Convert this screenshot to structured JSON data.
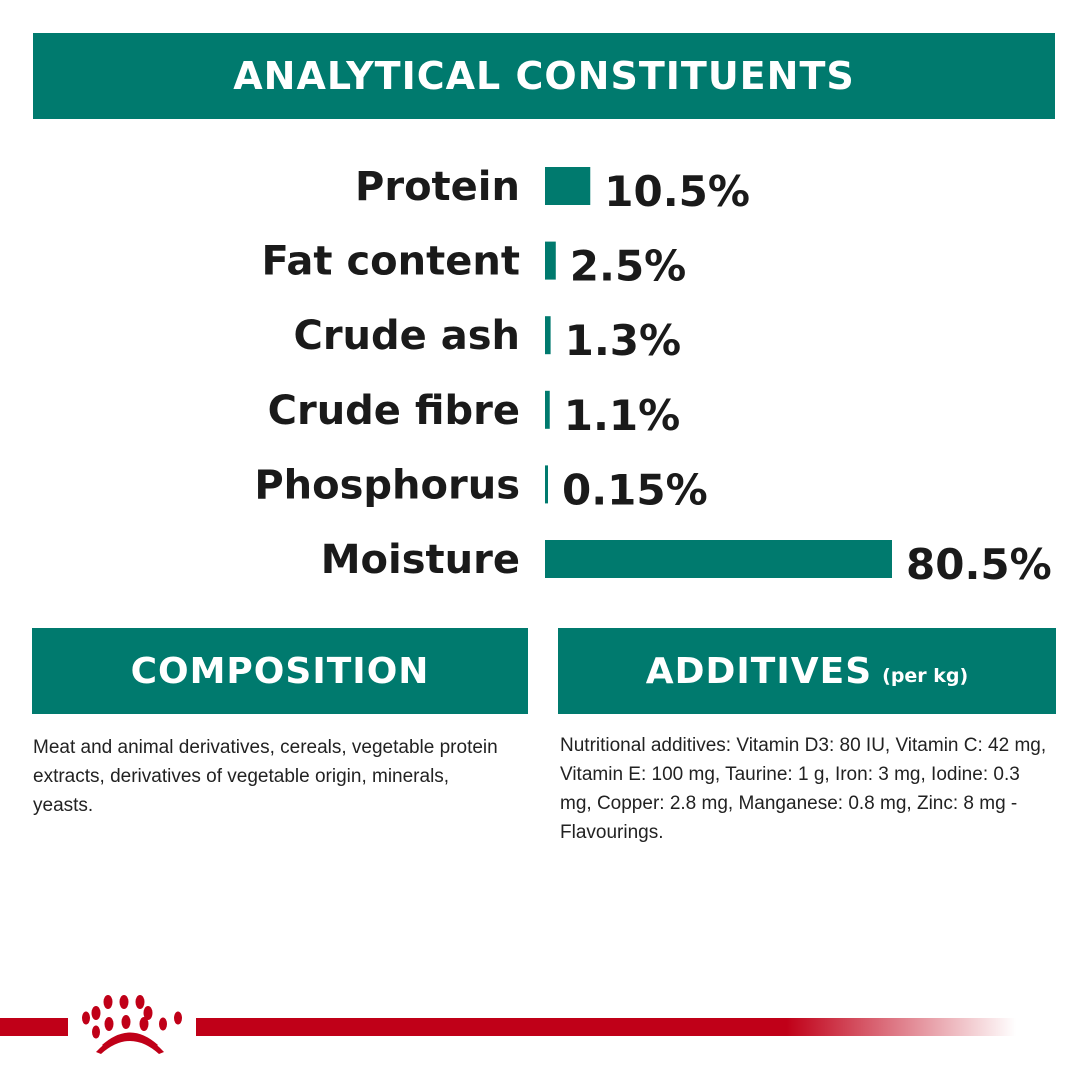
{
  "header": {
    "title": "ANALYTICAL CONSTITUENTS"
  },
  "chart_data": {
    "type": "bar",
    "orientation": "horizontal",
    "categories": [
      "Protein",
      "Fat content",
      "Crude ash",
      "Crude fibre",
      "Phosphorus",
      "Moisture"
    ],
    "values": [
      10.5,
      2.5,
      1.3,
      1.1,
      0.15,
      80.5
    ],
    "data_labels": [
      "10.5%",
      "2.5%",
      "1.3%",
      "1.1%",
      "0.15%",
      "80.5%"
    ],
    "unit": "%",
    "bar_color": "#007a6e",
    "grid": false
  },
  "composition": {
    "title": "COMPOSITION",
    "text": "Meat and animal derivatives, cereals, vegetable protein extracts, derivatives of vegetable origin, minerals, yeasts."
  },
  "additives": {
    "title": "ADDITIVES",
    "unit": "(per kg)",
    "text": "Nutritional additives: Vitamin D3: 80 IU, Vitamin C: 42 mg, Vitamin E: 100 mg, Taurine: 1 g, Iron: 3 mg, Iodine: 0.3 mg, Copper: 2.8 mg, Manganese: 0.8 mg, Zinc: 8 mg - Flavourings."
  },
  "colors": {
    "teal": "#007a6e",
    "brand_red": "#c00018"
  },
  "footer": {
    "logo": "royal-canin-crown-logo"
  }
}
